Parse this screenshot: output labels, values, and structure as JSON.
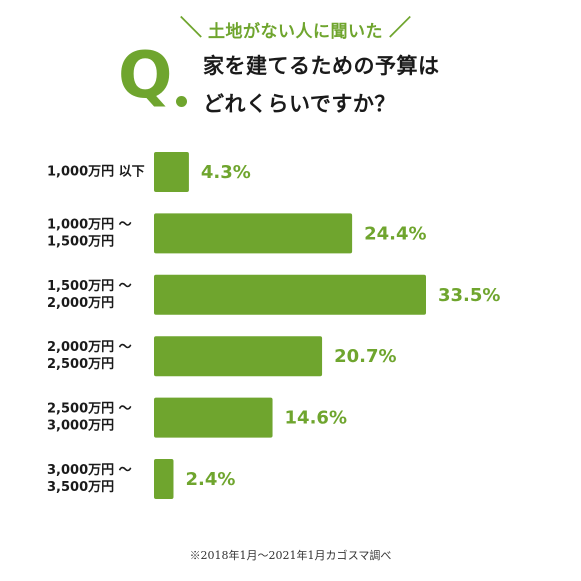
{
  "header": {
    "subtitle": "土地がない人に聞いた",
    "q_letter": "Q",
    "question_line1": "家を建てるための予算は",
    "question_line2": "どれくらいですか？"
  },
  "chart_data": {
    "type": "bar",
    "orientation": "horizontal",
    "categories": [
      [
        "1,000万円 以下"
      ],
      [
        "1,000万円 〜",
        "1,500万円"
      ],
      [
        "1,500万円 〜",
        "2,000万円"
      ],
      [
        "2,000万円 〜",
        "2,500万円"
      ],
      [
        "2,500万円 〜",
        "3,000万円"
      ],
      [
        "3,000万円 〜",
        "3,500万円"
      ]
    ],
    "values": [
      4.3,
      24.4,
      33.5,
      20.7,
      14.6,
      2.4
    ],
    "value_labels": [
      "4.3%",
      "24.4%",
      "33.5%",
      "20.7%",
      "14.6%",
      "2.4%"
    ],
    "unit": "%",
    "bar_color": "#6fa52e",
    "label_color": "#6fa52e",
    "grid": false,
    "legend": false
  },
  "footnote": "※2018年1月〜2021年1月カゴスマ調べ"
}
